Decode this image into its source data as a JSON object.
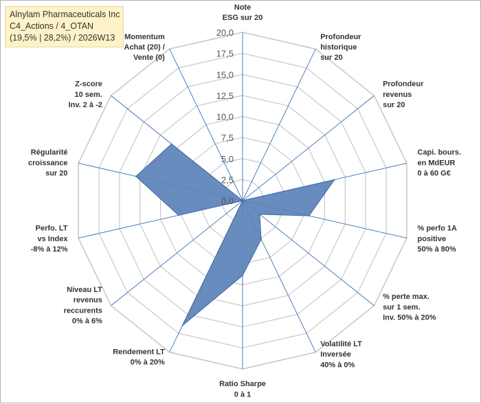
{
  "title_lines": [
    "Alnylam Pharmaceuticals Inc",
    "C4_Actions / 4_OTAN",
    "(19,5% | 28,2%) / 2026W13"
  ],
  "colors": {
    "grid": "#c8c8c8",
    "axis": "#4a7ebf",
    "fill": "#5b82b8",
    "fill_stroke": "#3f67a3",
    "title_bg": "#fdf2c8"
  },
  "chart_data": {
    "type": "radar",
    "title": "Alnylam Pharmaceuticals Inc",
    "rmin": 0,
    "rmax": 20,
    "tick_step": 2.5,
    "tick_labels": [
      "0,0",
      "2,5",
      "5,0",
      "7,5",
      "10,0",
      "12,5",
      "15,0",
      "17,5",
      "20,0"
    ],
    "categories": [
      [
        "Note",
        "ESG sur 20"
      ],
      [
        "Profondeur",
        "historique",
        "sur 20"
      ],
      [
        "Profondeur",
        "revenus",
        "sur 20"
      ],
      [
        "Capi. bours.",
        "en MdEUR",
        "0 à 60 G€"
      ],
      [
        "% perfo 1A",
        "positive",
        "50% à 80%"
      ],
      [
        "% perte max.",
        "sur 1 sem.",
        "Inv. 50% à 20%"
      ],
      [
        "Volatilité LT",
        "Inversée",
        "40% à 0%"
      ],
      [
        "Ratio Sharpe",
        "0 à 1"
      ],
      [
        "Rendement LT",
        "0% à 20%"
      ],
      [
        "Niveau LT",
        "revenus",
        "reccurents",
        "0% à 6%"
      ],
      [
        "Perfo. LT",
        "vs Index",
        "-8% à 12%"
      ],
      [
        "Régularité",
        "croissance",
        "sur 20"
      ],
      [
        "Z-score",
        "10 sem.",
        "Inv. 2 à -2"
      ],
      [
        "Momentum",
        "Achat (20) /",
        "Vente (0)"
      ]
    ],
    "series": [
      {
        "name": "Alnylam Pharmaceuticals Inc",
        "values": [
          0,
          0,
          0,
          11.2,
          8.1,
          2.6,
          5.1,
          8.9,
          16.5,
          0,
          7.8,
          13.0,
          10.8,
          0
        ]
      }
    ]
  }
}
